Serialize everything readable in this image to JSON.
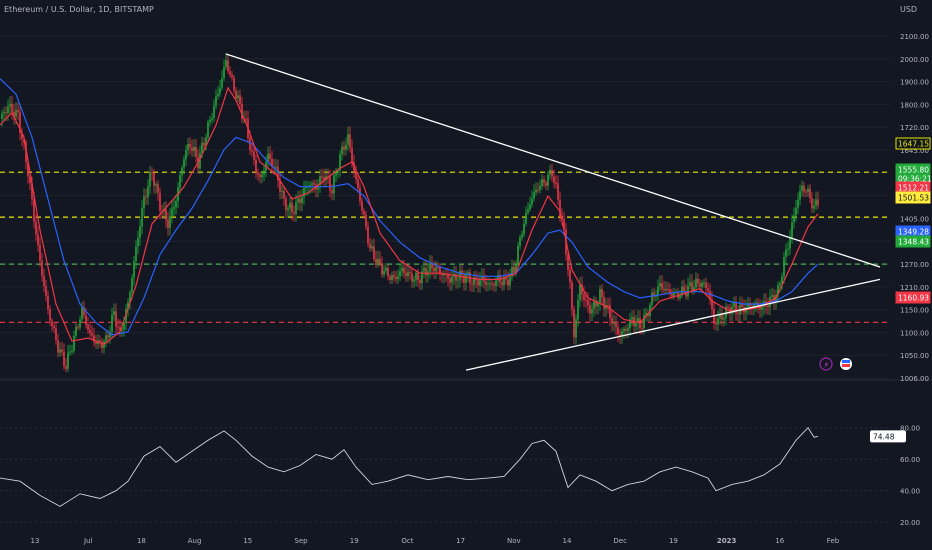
{
  "header": {
    "title": "Ethereum / U.S. Dollar, 1D, BITSTAMP",
    "currency": "USD"
  },
  "price_axis": {
    "ticks": [
      "2100.00",
      "2000.00",
      "1900.00",
      "1800.00",
      "1720.00",
      "1645.00",
      "1565.00",
      "1485.00",
      "1405.00",
      "1345.00",
      "1270.00",
      "1210.00",
      "1150.00",
      "1100.00",
      "1050.00",
      "1006.00"
    ]
  },
  "rsi_axis": {
    "ticks": [
      "80.00",
      "60.00",
      "40.00",
      "20.00"
    ]
  },
  "time_axis": {
    "ticks": [
      "13",
      "Jul",
      "18",
      "Aug",
      "15",
      "Sep",
      "19",
      "Oct",
      "17",
      "Nov",
      "14",
      "Dec",
      "19",
      "2023",
      "16",
      "Feb"
    ]
  },
  "price_labels": [
    {
      "text": "1647.15",
      "bg": "#131722",
      "fg": "#e6e600",
      "border": "#e6e600"
    },
    {
      "text": "1555.80",
      "bg": "#22ab3a",
      "fg": "#ffffff",
      "border": "#22ab3a"
    },
    {
      "text": "09:36:21",
      "bg": "#22ab3a",
      "fg": "#ffffff",
      "border": "#22ab3a"
    },
    {
      "text": "1512.21",
      "bg": "#f23645",
      "fg": "#ffffff",
      "border": "#f23645"
    },
    {
      "text": "1501.53",
      "bg": "#ffeb3b",
      "fg": "#131722",
      "border": "#ffeb3b"
    },
    {
      "text": "1349.28",
      "bg": "#2962ff",
      "fg": "#ffffff",
      "border": "#2962ff"
    },
    {
      "text": "1348.43",
      "bg": "#22ab3a",
      "fg": "#ffffff",
      "border": "#22ab3a"
    },
    {
      "text": "1160.93",
      "bg": "#f23645",
      "fg": "#ffffff",
      "border": "#f23645"
    }
  ],
  "rsi_label": {
    "text": "74.48"
  },
  "chart_data": {
    "type": "candlestick",
    "title": "Ethereum / U.S. Dollar, 1D, BITSTAMP",
    "price_path": [
      [
        0,
        1820
      ],
      [
        4,
        1860
      ],
      [
        9,
        1830
      ],
      [
        14,
        1650
      ],
      [
        19,
        1400
      ],
      [
        24,
        1200
      ],
      [
        29,
        1080
      ],
      [
        33,
        1020
      ],
      [
        37,
        1110
      ],
      [
        41,
        1200
      ],
      [
        45,
        1120
      ],
      [
        49,
        1090
      ],
      [
        53,
        1100
      ],
      [
        57,
        1190
      ],
      [
        60,
        1120
      ],
      [
        64,
        1220
      ],
      [
        68,
        1400
      ],
      [
        72,
        1560
      ],
      [
        76,
        1650
      ],
      [
        80,
        1540
      ],
      [
        84,
        1480
      ],
      [
        88,
        1560
      ],
      [
        92,
        1700
      ],
      [
        95,
        1740
      ],
      [
        99,
        1680
      ],
      [
        103,
        1770
      ],
      [
        107,
        1860
      ],
      [
        111,
        1950
      ],
      [
        113,
        2010
      ],
      [
        115,
        1960
      ],
      [
        119,
        1880
      ],
      [
        123,
        1800
      ],
      [
        126,
        1700
      ],
      [
        130,
        1620
      ],
      [
        134,
        1700
      ],
      [
        138,
        1650
      ],
      [
        142,
        1550
      ],
      [
        146,
        1520
      ],
      [
        150,
        1560
      ],
      [
        154,
        1610
      ],
      [
        158,
        1600
      ],
      [
        162,
        1640
      ],
      [
        166,
        1590
      ],
      [
        170,
        1700
      ],
      [
        174,
        1760
      ],
      [
        177,
        1650
      ],
      [
        181,
        1530
      ],
      [
        185,
        1400
      ],
      [
        189,
        1350
      ],
      [
        193,
        1320
      ],
      [
        197,
        1300
      ],
      [
        201,
        1330
      ],
      [
        205,
        1310
      ],
      [
        209,
        1300
      ],
      [
        213,
        1330
      ],
      [
        217,
        1340
      ],
      [
        221,
        1320
      ],
      [
        225,
        1300
      ],
      [
        229,
        1310
      ],
      [
        233,
        1310
      ],
      [
        237,
        1290
      ],
      [
        241,
        1300
      ],
      [
        245,
        1280
      ],
      [
        249,
        1300
      ],
      [
        253,
        1290
      ],
      [
        257,
        1330
      ],
      [
        261,
        1460
      ],
      [
        265,
        1550
      ],
      [
        269,
        1600
      ],
      [
        273,
        1620
      ],
      [
        276,
        1650
      ],
      [
        279,
        1560
      ],
      [
        282,
        1450
      ],
      [
        285,
        1280
      ],
      [
        287,
        1120
      ],
      [
        290,
        1280
      ],
      [
        293,
        1220
      ],
      [
        296,
        1200
      ],
      [
        300,
        1250
      ],
      [
        304,
        1200
      ],
      [
        307,
        1150
      ],
      [
        310,
        1120
      ],
      [
        313,
        1140
      ],
      [
        316,
        1170
      ],
      [
        320,
        1150
      ],
      [
        323,
        1180
      ],
      [
        326,
        1240
      ],
      [
        330,
        1280
      ],
      [
        334,
        1260
      ],
      [
        338,
        1250
      ],
      [
        342,
        1260
      ],
      [
        346,
        1280
      ],
      [
        350,
        1290
      ],
      [
        354,
        1270
      ],
      [
        357,
        1160
      ],
      [
        361,
        1180
      ],
      [
        365,
        1210
      ],
      [
        369,
        1200
      ],
      [
        373,
        1210
      ],
      [
        377,
        1220
      ],
      [
        381,
        1210
      ],
      [
        385,
        1230
      ],
      [
        389,
        1260
      ],
      [
        392,
        1360
      ],
      [
        395,
        1440
      ],
      [
        398,
        1540
      ],
      [
        401,
        1600
      ],
      [
        404,
        1580
      ],
      [
        407,
        1530
      ],
      [
        409,
        1555.8
      ]
    ],
    "ema_fast": [
      [
        0,
        1800
      ],
      [
        6,
        1840
      ],
      [
        12,
        1760
      ],
      [
        20,
        1460
      ],
      [
        28,
        1220
      ],
      [
        36,
        1100
      ],
      [
        44,
        1110
      ],
      [
        52,
        1090
      ],
      [
        60,
        1130
      ],
      [
        68,
        1280
      ],
      [
        76,
        1480
      ],
      [
        84,
        1540
      ],
      [
        92,
        1600
      ],
      [
        100,
        1690
      ],
      [
        108,
        1800
      ],
      [
        114,
        1920
      ],
      [
        118,
        1880
      ],
      [
        124,
        1790
      ],
      [
        130,
        1680
      ],
      [
        138,
        1640
      ],
      [
        146,
        1560
      ],
      [
        154,
        1580
      ],
      [
        162,
        1620
      ],
      [
        170,
        1660
      ],
      [
        176,
        1680
      ],
      [
        182,
        1600
      ],
      [
        190,
        1450
      ],
      [
        200,
        1360
      ],
      [
        210,
        1320
      ],
      [
        220,
        1320
      ],
      [
        230,
        1310
      ],
      [
        240,
        1300
      ],
      [
        250,
        1300
      ],
      [
        258,
        1320
      ],
      [
        266,
        1460
      ],
      [
        274,
        1570
      ],
      [
        280,
        1520
      ],
      [
        286,
        1330
      ],
      [
        294,
        1240
      ],
      [
        304,
        1210
      ],
      [
        312,
        1170
      ],
      [
        320,
        1160
      ],
      [
        330,
        1230
      ],
      [
        340,
        1250
      ],
      [
        350,
        1270
      ],
      [
        356,
        1230
      ],
      [
        364,
        1200
      ],
      [
        372,
        1200
      ],
      [
        380,
        1210
      ],
      [
        388,
        1240
      ],
      [
        396,
        1350
      ],
      [
        404,
        1470
      ],
      [
        409,
        1512.21
      ]
    ],
    "ema_slow": [
      [
        0,
        1950
      ],
      [
        8,
        1900
      ],
      [
        16,
        1760
      ],
      [
        24,
        1560
      ],
      [
        32,
        1360
      ],
      [
        40,
        1220
      ],
      [
        48,
        1160
      ],
      [
        56,
        1120
      ],
      [
        64,
        1130
      ],
      [
        72,
        1240
      ],
      [
        80,
        1380
      ],
      [
        88,
        1460
      ],
      [
        96,
        1530
      ],
      [
        104,
        1620
      ],
      [
        112,
        1720
      ],
      [
        118,
        1760
      ],
      [
        126,
        1740
      ],
      [
        134,
        1680
      ],
      [
        142,
        1630
      ],
      [
        150,
        1600
      ],
      [
        158,
        1600
      ],
      [
        166,
        1600
      ],
      [
        174,
        1610
      ],
      [
        182,
        1570
      ],
      [
        190,
        1490
      ],
      [
        200,
        1420
      ],
      [
        210,
        1370
      ],
      [
        220,
        1340
      ],
      [
        230,
        1320
      ],
      [
        240,
        1310
      ],
      [
        250,
        1310
      ],
      [
        258,
        1320
      ],
      [
        266,
        1380
      ],
      [
        274,
        1450
      ],
      [
        280,
        1460
      ],
      [
        286,
        1420
      ],
      [
        294,
        1340
      ],
      [
        304,
        1290
      ],
      [
        312,
        1260
      ],
      [
        320,
        1240
      ],
      [
        330,
        1250
      ],
      [
        340,
        1260
      ],
      [
        350,
        1260
      ],
      [
        356,
        1250
      ],
      [
        364,
        1230
      ],
      [
        372,
        1220
      ],
      [
        380,
        1220
      ],
      [
        388,
        1230
      ],
      [
        396,
        1260
      ],
      [
        404,
        1320
      ],
      [
        409,
        1349.28
      ]
    ],
    "rsi": [
      [
        0,
        48
      ],
      [
        10,
        46
      ],
      [
        20,
        37
      ],
      [
        30,
        30
      ],
      [
        40,
        38
      ],
      [
        50,
        35
      ],
      [
        58,
        40
      ],
      [
        64,
        46
      ],
      [
        72,
        62
      ],
      [
        80,
        68
      ],
      [
        88,
        58
      ],
      [
        96,
        65
      ],
      [
        104,
        72
      ],
      [
        112,
        78
      ],
      [
        118,
        72
      ],
      [
        126,
        62
      ],
      [
        134,
        55
      ],
      [
        142,
        52
      ],
      [
        150,
        56
      ],
      [
        158,
        63
      ],
      [
        166,
        60
      ],
      [
        172,
        66
      ],
      [
        178,
        55
      ],
      [
        186,
        44
      ],
      [
        194,
        46
      ],
      [
        204,
        50
      ],
      [
        214,
        47
      ],
      [
        224,
        49
      ],
      [
        234,
        47
      ],
      [
        244,
        48
      ],
      [
        252,
        49
      ],
      [
        260,
        60
      ],
      [
        266,
        70
      ],
      [
        272,
        72
      ],
      [
        278,
        65
      ],
      [
        284,
        42
      ],
      [
        290,
        50
      ],
      [
        298,
        46
      ],
      [
        306,
        40
      ],
      [
        314,
        44
      ],
      [
        322,
        46
      ],
      [
        330,
        52
      ],
      [
        338,
        55
      ],
      [
        346,
        52
      ],
      [
        354,
        48
      ],
      [
        358,
        40
      ],
      [
        366,
        44
      ],
      [
        374,
        46
      ],
      [
        382,
        50
      ],
      [
        390,
        57
      ],
      [
        398,
        72
      ],
      [
        404,
        80
      ],
      [
        407,
        74
      ],
      [
        409,
        74.48
      ]
    ],
    "horizontal_levels": [
      {
        "price": 1647.15,
        "color": "#e6e600",
        "style": "dashed"
      },
      {
        "price": 1501.53,
        "color": "#e6e600",
        "style": "dashed"
      },
      {
        "price": 1349.28,
        "color": "#4caf50",
        "style": "dashed"
      },
      {
        "price": 1160.93,
        "color": "#f23645",
        "style": "dashed"
      }
    ],
    "trendlines": [
      {
        "from": [
          113,
          2030
        ],
        "to": [
          440,
          1340
        ]
      },
      {
        "from": [
          233,
          1006
        ],
        "to": [
          440,
          1300
        ]
      }
    ],
    "ylim": [
      1000,
      2140
    ],
    "rsi_ylim": [
      15,
      90
    ],
    "rsi_levels": [
      80,
      60,
      40,
      20
    ]
  },
  "colors": {
    "up": "#26a69a",
    "up_bright": "#22ab3a",
    "down": "#f23645",
    "ema_fast": "#f23645",
    "ema_slow": "#2962ff",
    "grid": "#1e222d",
    "text": "#b2b5be"
  }
}
